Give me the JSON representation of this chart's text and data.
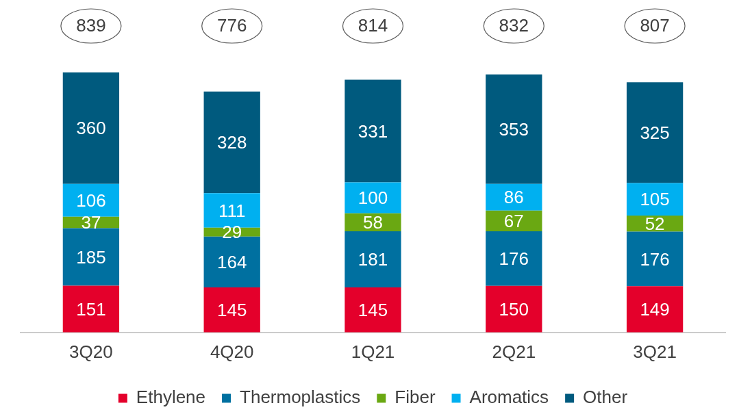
{
  "chart_data": {
    "type": "bar",
    "stacked": true,
    "data_labels": true,
    "grid": false,
    "legend": "bottom",
    "categories": [
      "3Q20",
      "4Q20",
      "1Q21",
      "2Q21",
      "3Q21"
    ],
    "series": [
      {
        "name": "Ethylene",
        "color": "#e4002b",
        "values": [
          151,
          145,
          145,
          150,
          149
        ]
      },
      {
        "name": "Thermoplastics",
        "color": "#0070a0",
        "values": [
          185,
          164,
          181,
          176,
          176
        ]
      },
      {
        "name": "Fiber",
        "color": "#6aa812",
        "values": [
          37,
          29,
          58,
          67,
          52
        ]
      },
      {
        "name": "Aromatics",
        "color": "#00b0f0",
        "values": [
          106,
          111,
          100,
          86,
          105
        ]
      },
      {
        "name": "Other",
        "color": "#005a7e",
        "values": [
          360,
          328,
          331,
          353,
          325
        ]
      }
    ],
    "totals": [
      "839",
      "776",
      "814",
      "832",
      "807"
    ]
  }
}
